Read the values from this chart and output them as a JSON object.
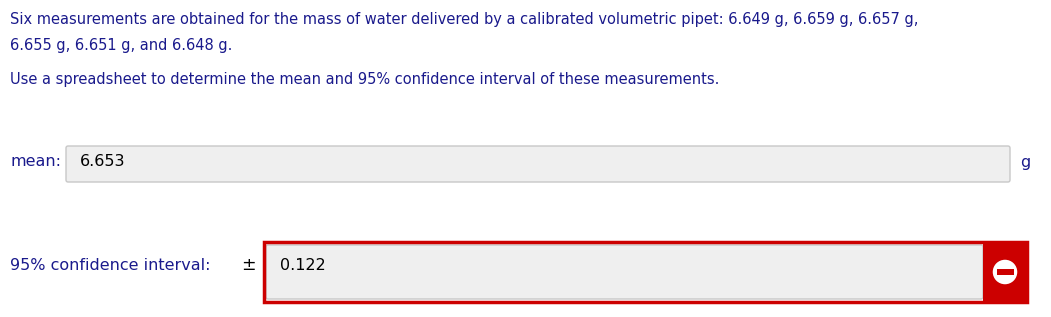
{
  "bg_color": "#ffffff",
  "text_color": "#1a1a8c",
  "line1": "Six measurements are obtained for the mass of water delivered by a calibrated volumetric pipet: 6.649 g, 6.659 g, 6.657 g,",
  "line2": "6.655 g, 6.651 g, and 6.648 g.",
  "line3": "Use a spreadsheet to determine the mean and 95% confidence interval of these measurements.",
  "mean_label": "mean:",
  "mean_value": "6.653",
  "mean_unit": "g",
  "ci_label": "95% confidence interval:",
  "ci_pm": "±",
  "ci_value": "0.122",
  "input_bg": "#efefef",
  "input_border": "#c8c8c8",
  "ci_outer_border": "#cc0000",
  "icon_bg": "#cc0000",
  "font_size_text": 10.5,
  "font_size_input": 11.5
}
